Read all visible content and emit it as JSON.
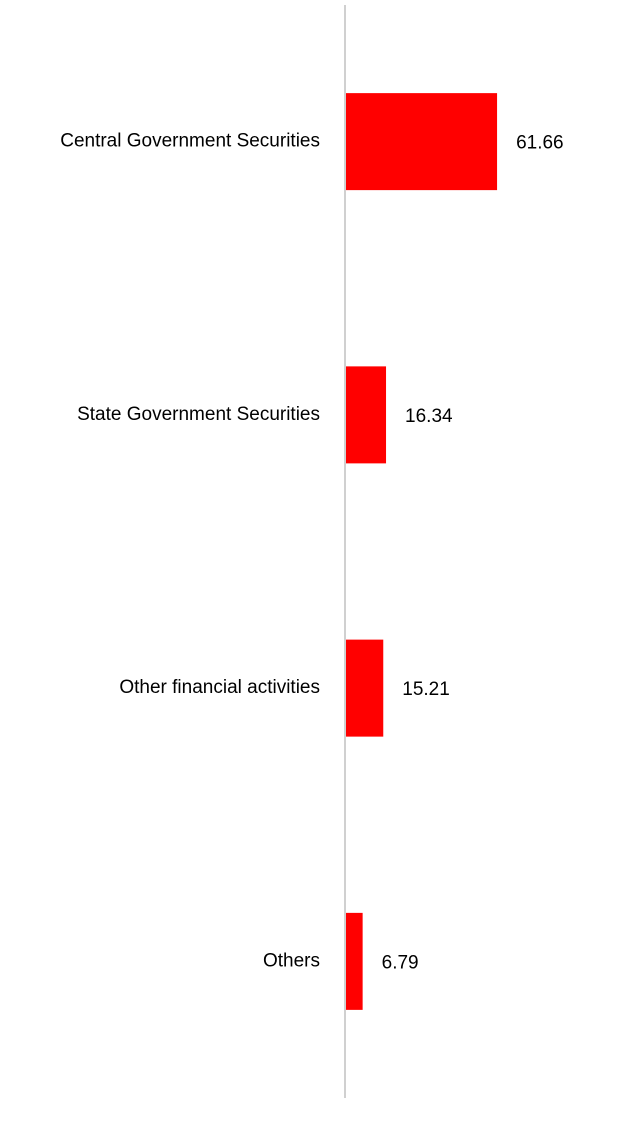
{
  "chart_data": {
    "type": "bar",
    "orientation": "horizontal",
    "categories": [
      "Central Government Securities",
      "State Government Securities",
      "Other financial activities",
      "Others"
    ],
    "values": [
      61.66,
      16.34,
      15.21,
      6.79
    ],
    "color": "#ff0000"
  }
}
